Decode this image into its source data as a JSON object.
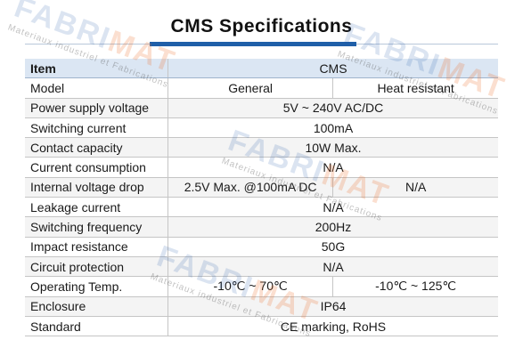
{
  "title": "CMS Specifications",
  "table": {
    "header": {
      "label": "Item",
      "value": "CMS"
    },
    "rows": [
      {
        "label": "Model",
        "values": [
          "General",
          "Heat resistant"
        ]
      },
      {
        "label": "Power supply voltage",
        "values": [
          "5V ~ 240V AC/DC"
        ]
      },
      {
        "label": "Switching current",
        "values": [
          "100mA"
        ]
      },
      {
        "label": "Contact capacity",
        "values": [
          "10W  Max."
        ]
      },
      {
        "label": "Current consumption",
        "values": [
          "N/A"
        ]
      },
      {
        "label": "Internal voltage drop",
        "values": [
          "2.5V Max. @100mA DC",
          "N/A"
        ]
      },
      {
        "label": "Leakage current",
        "values": [
          "N/A"
        ]
      },
      {
        "label": "Switching frequency",
        "values": [
          "200Hz"
        ]
      },
      {
        "label": "Impact resistance",
        "values": [
          "50G"
        ]
      },
      {
        "label": "Circuit protection",
        "values": [
          "N/A"
        ]
      },
      {
        "label": "Operating Temp.",
        "values": [
          "-10℃ ~ 70℃",
          "-10℃ ~ 125℃"
        ]
      },
      {
        "label": "Enclosure",
        "values": [
          "IP64"
        ]
      },
      {
        "label": "Standard",
        "values": [
          "CE marking, RoHS"
        ]
      }
    ]
  },
  "watermark": {
    "logo_main": "FABRI",
    "logo_accent": "MAT",
    "subtitle": "Materiaux industriel et Fabrications"
  },
  "colors": {
    "accent_blue": "#1f5fa8",
    "header_row_bg": "#dbe6f3",
    "watermark_orange": "#eb6e28"
  }
}
